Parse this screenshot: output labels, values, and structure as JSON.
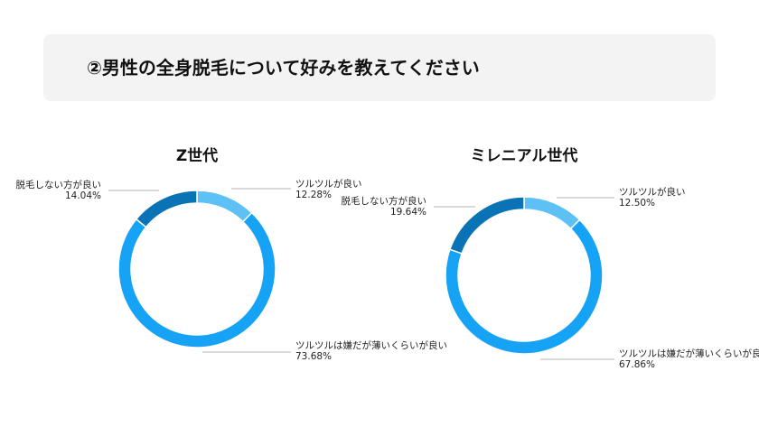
{
  "header": {
    "title": "②男性の全身脱毛について好みを教えてください"
  },
  "colors": {
    "dark": "#0a73b5",
    "light": "#5ec1f6",
    "main": "#16a2f5",
    "leader": "#9a9a9a"
  },
  "chart_data": [
    {
      "type": "pie",
      "donut": true,
      "title": "Z世代",
      "slices": [
        {
          "label": "ツルツルが良い",
          "value": 12.28,
          "value_text": "12.28%",
          "color": "#5ec1f6"
        },
        {
          "label": "ツルツルは嫌だが薄いくらいが良い",
          "value": 73.68,
          "value_text": "73.68%",
          "color": "#16a2f5"
        },
        {
          "label": "脱毛しない方が良い",
          "value": 14.04,
          "value_text": "14.04%",
          "color": "#0a73b5"
        }
      ]
    },
    {
      "type": "pie",
      "donut": true,
      "title": "ミレニアル世代",
      "slices": [
        {
          "label": "ツルツルが良い",
          "value": 12.5,
          "value_text": "12.50%",
          "color": "#5ec1f6"
        },
        {
          "label": "ツルツルは嫌だが薄いくらいが良い",
          "value": 67.86,
          "value_text": "67.86%",
          "color": "#16a2f5"
        },
        {
          "label": "脱毛しない方が良い",
          "value": 19.64,
          "value_text": "19.64%",
          "color": "#0a73b5"
        }
      ]
    }
  ]
}
